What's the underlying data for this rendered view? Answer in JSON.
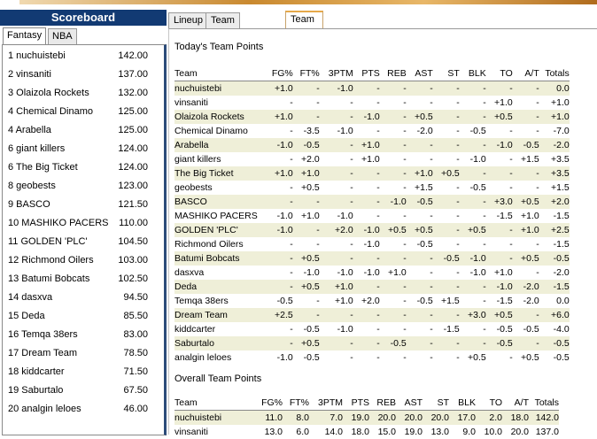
{
  "scoreboard": {
    "title": "Scoreboard",
    "tabs": [
      "Fantasy",
      "NBA"
    ],
    "rows": [
      {
        "name": "1  nuchuistebi",
        "score": "142.00"
      },
      {
        "name": "2  vinsaniti",
        "score": "137.00"
      },
      {
        "name": "3  Olaizola Rockets",
        "score": "132.00"
      },
      {
        "name": "4  Chemical Dinamo",
        "score": "125.00"
      },
      {
        "name": "4  Arabella",
        "score": "125.00"
      },
      {
        "name": "6  giant killers",
        "score": "124.00"
      },
      {
        "name": "6  The Big Ticket",
        "score": "124.00"
      },
      {
        "name": "8  geobests",
        "score": "123.00"
      },
      {
        "name": "9  BASCO",
        "score": "121.50"
      },
      {
        "name": "10 MASHIKO PACERS",
        "score": "110.00"
      },
      {
        "name": "11 GOLDEN 'PLC'",
        "score": "104.50"
      },
      {
        "name": "12 Richmond Oilers",
        "score": "103.00"
      },
      {
        "name": "13 Batumi Bobcats",
        "score": "102.50"
      },
      {
        "name": "14 dasxva",
        "score": "94.50"
      },
      {
        "name": "15 Deda",
        "score": "85.50"
      },
      {
        "name": "16 Temqa 38ers",
        "score": "83.00"
      },
      {
        "name": "17 Dream Team",
        "score": "78.50"
      },
      {
        "name": "18 kiddcarter",
        "score": "71.50"
      },
      {
        "name": "19 Saburtalo",
        "score": "67.50"
      },
      {
        "name": "20 analgin leloes",
        "score": "46.00"
      }
    ]
  },
  "main": {
    "tabs": [
      "Lineup",
      "Team Stats",
      "Team Points"
    ],
    "today_title": "Today's Team Points",
    "overall_title": "Overall Team Points",
    "columns": [
      "Team",
      "FG%",
      "FT%",
      "3PTM",
      "PTS",
      "REB",
      "AST",
      "ST",
      "BLK",
      "TO",
      "A/T",
      "Totals"
    ],
    "today_rows": [
      [
        "nuchuistebi",
        "+1.0",
        "-",
        "-1.0",
        "-",
        "-",
        "-",
        "-",
        "-",
        "-",
        "-",
        "0.0"
      ],
      [
        "vinsaniti",
        "-",
        "-",
        "-",
        "-",
        "-",
        "-",
        "-",
        "-",
        "+1.0",
        "-",
        "+1.0"
      ],
      [
        "Olaizola Rockets",
        "+1.0",
        "-",
        "-",
        "-1.0",
        "-",
        "+0.5",
        "-",
        "-",
        "+0.5",
        "-",
        "+1.0"
      ],
      [
        "Chemical Dinamo",
        "-",
        "-3.5",
        "-1.0",
        "-",
        "-",
        "-2.0",
        "-",
        "-0.5",
        "-",
        "-",
        "-7.0"
      ],
      [
        "Arabella",
        "-1.0",
        "-0.5",
        "-",
        "+1.0",
        "-",
        "-",
        "-",
        "-",
        "-1.0",
        "-0.5",
        "-2.0"
      ],
      [
        "giant killers",
        "-",
        "+2.0",
        "-",
        "+1.0",
        "-",
        "-",
        "-",
        "-1.0",
        "-",
        "+1.5",
        "+3.5"
      ],
      [
        "The Big Ticket",
        "+1.0",
        "+1.0",
        "-",
        "-",
        "-",
        "+1.0",
        "+0.5",
        "-",
        "-",
        "-",
        "+3.5"
      ],
      [
        "geobests",
        "-",
        "+0.5",
        "-",
        "-",
        "-",
        "+1.5",
        "-",
        "-0.5",
        "-",
        "-",
        "+1.5"
      ],
      [
        "BASCO",
        "-",
        "-",
        "-",
        "-",
        "-1.0",
        "-0.5",
        "-",
        "-",
        "+3.0",
        "+0.5",
        "+2.0"
      ],
      [
        "MASHIKO PACERS",
        "-1.0",
        "+1.0",
        "-1.0",
        "-",
        "-",
        "-",
        "-",
        "-",
        "-1.5",
        "+1.0",
        "-1.5"
      ],
      [
        "GOLDEN 'PLC'",
        "-1.0",
        "-",
        "+2.0",
        "-1.0",
        "+0.5",
        "+0.5",
        "-",
        "+0.5",
        "-",
        "+1.0",
        "+2.5"
      ],
      [
        "Richmond Oilers",
        "-",
        "-",
        "-",
        "-1.0",
        "-",
        "-0.5",
        "-",
        "-",
        "-",
        "-",
        "-1.5"
      ],
      [
        "Batumi Bobcats",
        "-",
        "+0.5",
        "-",
        "-",
        "-",
        "-",
        "-0.5",
        "-1.0",
        "-",
        "+0.5",
        "-0.5"
      ],
      [
        "dasxva",
        "-",
        "-1.0",
        "-1.0",
        "-1.0",
        "+1.0",
        "-",
        "-",
        "-1.0",
        "+1.0",
        "-",
        "-2.0"
      ],
      [
        "Deda",
        "-",
        "+0.5",
        "+1.0",
        "-",
        "-",
        "-",
        "-",
        "-",
        "-1.0",
        "-2.0",
        "-1.5"
      ],
      [
        "Temqa 38ers",
        "-0.5",
        "-",
        "+1.0",
        "+2.0",
        "-",
        "-0.5",
        "+1.5",
        "-",
        "-1.5",
        "-2.0",
        "0.0"
      ],
      [
        "Dream Team",
        "+2.5",
        "-",
        "-",
        "-",
        "-",
        "-",
        "-",
        "+3.0",
        "+0.5",
        "-",
        "+6.0"
      ],
      [
        "kiddcarter",
        "-",
        "-0.5",
        "-1.0",
        "-",
        "-",
        "-",
        "-1.5",
        "-",
        "-0.5",
        "-0.5",
        "-4.0"
      ],
      [
        "Saburtalo",
        "-",
        "+0.5",
        "-",
        "-",
        "-0.5",
        "-",
        "-",
        "-",
        "-0.5",
        "-",
        "-0.5"
      ],
      [
        "analgin leloes",
        "-1.0",
        "-0.5",
        "-",
        "-",
        "-",
        "-",
        "-",
        "+0.5",
        "-",
        "+0.5",
        "-0.5"
      ]
    ],
    "overall_rows": [
      [
        "nuchuistebi",
        "11.0",
        "8.0",
        "7.0",
        "19.0",
        "20.0",
        "20.0",
        "20.0",
        "17.0",
        "2.0",
        "18.0",
        "142.0"
      ],
      [
        "vinsaniti",
        "13.0",
        "6.0",
        "14.0",
        "18.0",
        "15.0",
        "19.0",
        "13.0",
        "9.0",
        "10.0",
        "20.0",
        "137.0"
      ]
    ]
  }
}
